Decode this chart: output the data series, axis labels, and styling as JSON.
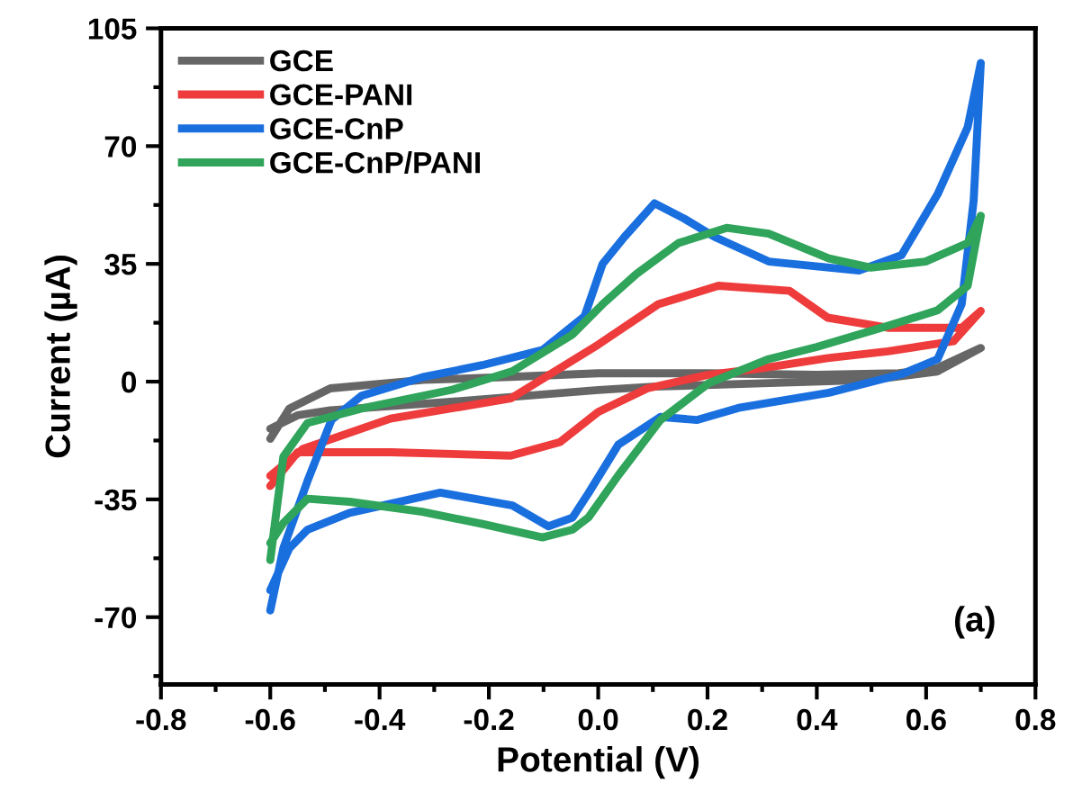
{
  "chart_data": {
    "type": "line",
    "xlabel": "Potential (V)",
    "ylabel": "Current (µA)",
    "xlim": [
      -0.8,
      0.8
    ],
    "xticks": [
      -0.8,
      -0.6,
      -0.4,
      -0.2,
      {
        "value": 0,
        "label": "0.0"
      },
      0.2,
      0.4,
      0.6,
      0.8
    ],
    "ylim": [
      -90,
      105
    ],
    "yticks": [
      -70,
      -35,
      0,
      35,
      70,
      105
    ],
    "grid": false,
    "legend": "top left",
    "marker": "none",
    "line_style": "solid",
    "annotations": [
      "(a)"
    ],
    "series": [
      {
        "name": "GCE",
        "color": "#666666",
        "x": [
          -0.6,
          -0.565,
          -0.49,
          -0.32,
          -0.16,
          0.0,
          0.2,
          0.4,
          0.55,
          0.62,
          0.7,
          0.62,
          0.5,
          0.3,
          0.1,
          0.0,
          -0.27,
          -0.49,
          -0.55,
          -0.6
        ],
        "values": [
          -17,
          -8,
          -2,
          0.5,
          1.4,
          2.5,
          2.5,
          2,
          2.5,
          4,
          10,
          3,
          0.5,
          -0.5,
          -1.5,
          -2.5,
          -6,
          -8.5,
          -10,
          -14
        ]
      },
      {
        "name": "GCE-PANI",
        "color": "#ee3b3b",
        "x": [
          -0.6,
          -0.55,
          -0.38,
          -0.16,
          -0.07,
          0.0,
          0.09,
          0.2,
          0.3,
          0.42,
          0.53,
          0.65,
          0.7,
          0.665,
          0.53,
          0.42,
          0.35,
          0.22,
          0.11,
          0.0,
          -0.16,
          -0.38,
          -0.54,
          -0.6
        ],
        "values": [
          -31,
          -21,
          -21,
          -22,
          -18,
          -9,
          -2,
          2,
          4,
          7,
          9,
          12,
          21,
          16,
          16,
          19,
          27,
          28.5,
          23,
          11,
          -5,
          -11,
          -20,
          -28
        ]
      },
      {
        "name": "GCE-CnP",
        "color": "#1a6fdf",
        "x": [
          -0.6,
          -0.576,
          -0.532,
          -0.488,
          -0.433,
          -0.322,
          -0.212,
          -0.102,
          -0.025,
          0.008,
          0.048,
          0.103,
          0.158,
          0.213,
          0.312,
          0.477,
          0.555,
          0.621,
          0.676,
          0.7,
          0.687,
          0.665,
          0.621,
          0.555,
          0.422,
          0.257,
          0.18,
          0.114,
          0.037,
          -0.018,
          -0.047,
          -0.091,
          -0.157,
          -0.289,
          -0.455,
          -0.532,
          -0.565,
          -0.6
        ],
        "values": [
          -68,
          -49.5,
          -29.6,
          -11.4,
          -4.2,
          1.3,
          4.9,
          9.4,
          19.4,
          35,
          43,
          53,
          48.4,
          43,
          35.7,
          33,
          37.6,
          55.7,
          75.6,
          94.7,
          53.9,
          23,
          6.7,
          2.2,
          -3.3,
          -7.8,
          -11.4,
          -10.5,
          -18.7,
          -33.2,
          -40.4,
          -43,
          -36.8,
          -33,
          -39,
          -44,
          -49.5,
          -62
        ]
      },
      {
        "name": "GCE-CnP/PANI",
        "color": "#2fa45a",
        "x": [
          -0.6,
          -0.576,
          -0.532,
          -0.433,
          -0.267,
          -0.157,
          -0.047,
          0.008,
          0.07,
          0.147,
          0.235,
          0.312,
          0.422,
          0.499,
          0.599,
          0.676,
          0.7,
          0.676,
          0.621,
          0.533,
          0.4,
          0.312,
          0.202,
          0.114,
          0.037,
          -0.018,
          -0.047,
          -0.102,
          -0.212,
          -0.322,
          -0.455,
          -0.532,
          -0.576,
          -0.6
        ],
        "values": [
          -53,
          -22.3,
          -12.3,
          -8,
          -2.4,
          3.1,
          14,
          23,
          32,
          41.2,
          45.7,
          44,
          36.6,
          33.9,
          35.7,
          41.2,
          49.3,
          28.5,
          21.2,
          16.7,
          10.3,
          6.7,
          -0.5,
          -11.4,
          -27.8,
          -40.4,
          -44,
          -46.3,
          -42.3,
          -38.7,
          -35.7,
          -34.8,
          -42,
          -48
        ]
      }
    ]
  }
}
